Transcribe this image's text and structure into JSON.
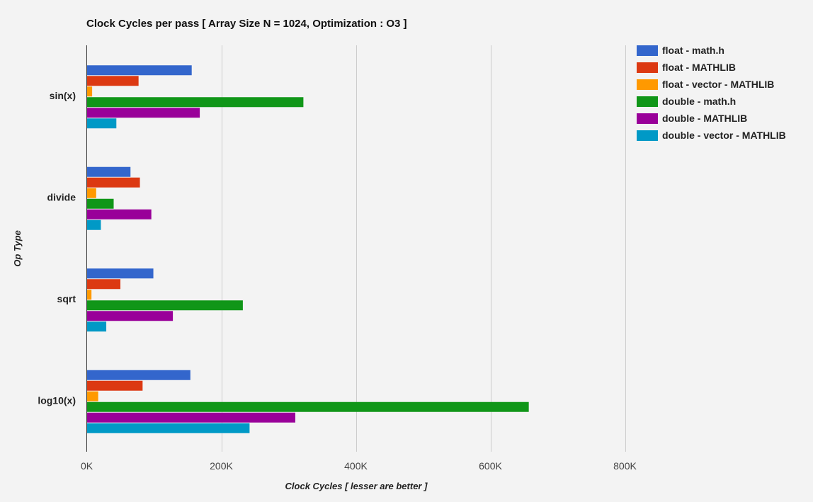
{
  "chart_data": {
    "type": "bar",
    "orientation": "horizontal",
    "title": "Clock Cycles per pass [ Array Size N = 1024, Optimization : O3 ]",
    "xlabel": "Clock Cycles [ lesser are better ]",
    "ylabel": "Op Type",
    "categories": [
      "sin(x)",
      "divide",
      "sqrt",
      "log10(x)"
    ],
    "xlim": [
      0,
      940000
    ],
    "x_ticks": [
      0,
      200000,
      400000,
      600000,
      800000
    ],
    "x_tick_labels": [
      "0K",
      "200K",
      "400K",
      "600K",
      "800K"
    ],
    "grid": true,
    "legend_position": "right",
    "series": [
      {
        "name": "float - math.h",
        "color": "#3366cc",
        "values": [
          156000,
          65000,
          99000,
          154000
        ]
      },
      {
        "name": "float - MATHLIB",
        "color": "#dc3912",
        "values": [
          77000,
          79000,
          50000,
          83000
        ]
      },
      {
        "name": "float - vector - MATHLIB",
        "color": "#ff9900",
        "values": [
          8000,
          14000,
          7000,
          17000
        ]
      },
      {
        "name": "double - math.h",
        "color": "#109618",
        "values": [
          322000,
          40000,
          232000,
          657000
        ]
      },
      {
        "name": "double - MATHLIB",
        "color": "#990099",
        "values": [
          168000,
          96000,
          128000,
          310000
        ]
      },
      {
        "name": "double - vector - MATHLIB",
        "color": "#0099c6",
        "values": [
          44000,
          21000,
          29000,
          242000
        ]
      }
    ]
  }
}
